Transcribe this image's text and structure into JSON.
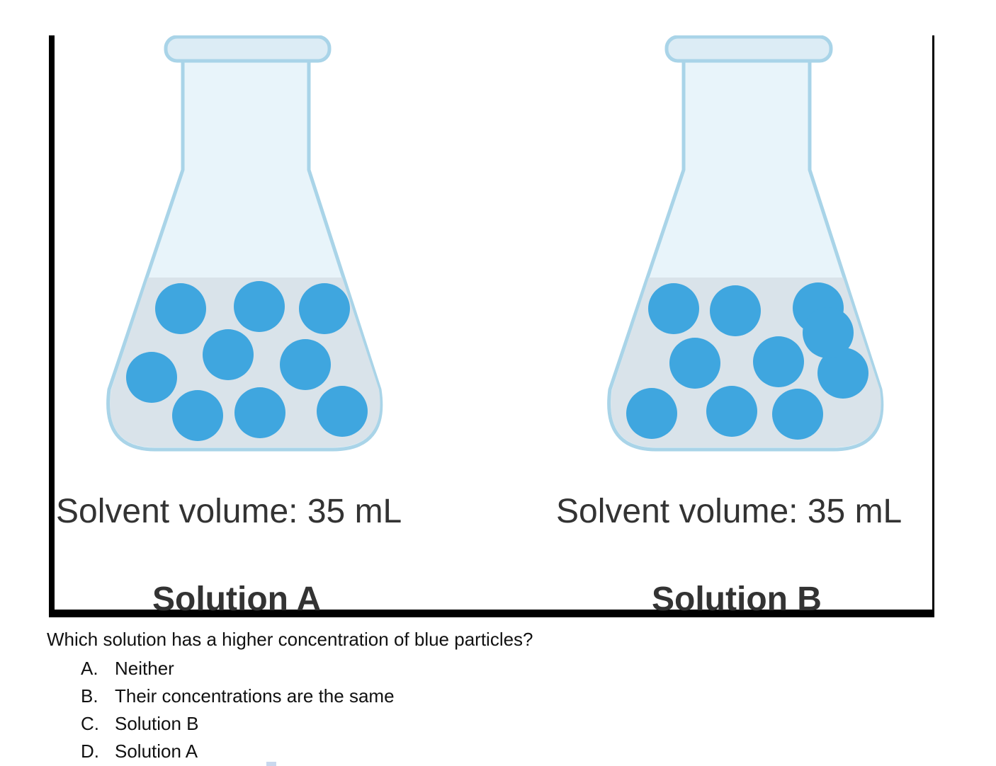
{
  "figure": {
    "solution_a": {
      "volume_label": "Solvent volume: 35 mL",
      "title": "Solution A",
      "particle_count": 9
    },
    "solution_b": {
      "volume_label": "Solvent volume: 35 mL",
      "title": "Solution B",
      "particle_count": 10
    },
    "colors": {
      "particle": "#3fa6df",
      "liquid": "#d9e3ea",
      "glass": "#e8f4fa",
      "glass_outline": "#a9d4e8",
      "frame": "#000000"
    }
  },
  "question": {
    "text": "Which solution has a higher concentration of blue particles?",
    "choices": [
      {
        "letter": "A.",
        "text": "Neither"
      },
      {
        "letter": "B.",
        "text": "Their concentrations are the same"
      },
      {
        "letter": "C.",
        "text": "Solution B"
      },
      {
        "letter": "D.",
        "text": "Solution A"
      }
    ]
  }
}
